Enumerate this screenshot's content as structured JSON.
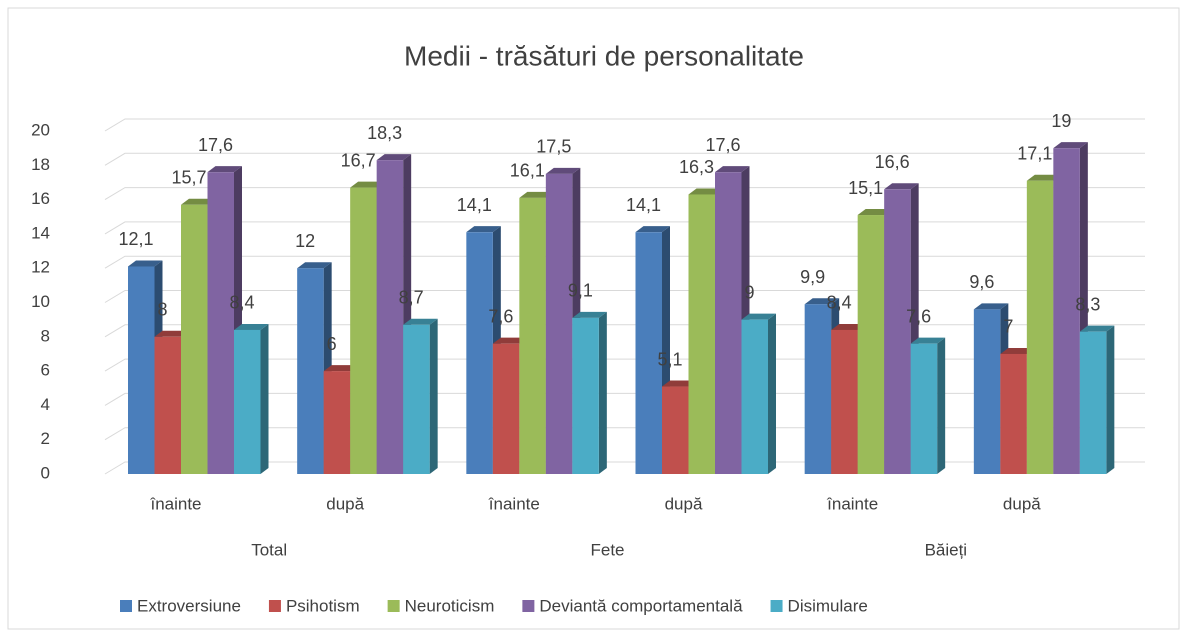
{
  "chart_data": {
    "type": "bar3d",
    "title": "Medii - trăsături  de personalitate",
    "categories": [
      "înainte",
      "după",
      "înainte",
      "după",
      "înainte",
      "după"
    ],
    "groups": [
      "Total",
      "Fete",
      "Băieți"
    ],
    "ylim": [
      0,
      20
    ],
    "yticks": [
      0,
      2,
      4,
      6,
      8,
      10,
      12,
      14,
      16,
      18,
      20
    ],
    "grid": true,
    "legend": "bottom",
    "series": [
      {
        "name": "Extroversiune",
        "color": "#4a7ebb",
        "values": [
          12.1,
          12,
          14.1,
          14.1,
          9.9,
          9.6
        ],
        "value_labels": [
          "12,1",
          "12",
          "14,1",
          "14,1",
          "9,9",
          "9,6"
        ]
      },
      {
        "name": "Psihotism",
        "color": "#c0504d",
        "values": [
          8,
          6,
          7.6,
          5.1,
          8.4,
          7
        ],
        "value_labels": [
          "8",
          "6",
          "7,6",
          "5,1",
          "8,4",
          "7"
        ]
      },
      {
        "name": "Neuroticism",
        "color": "#9bbb59",
        "values": [
          15.7,
          16.7,
          16.1,
          16.3,
          15.1,
          17.1
        ],
        "value_labels": [
          "15,7",
          "16,7",
          "16,1",
          "16,3",
          "15,1",
          "17,1"
        ]
      },
      {
        "name": "Deviantă comportamentală",
        "color": "#8064a2",
        "values": [
          17.6,
          18.3,
          17.5,
          17.6,
          16.6,
          19
        ],
        "value_labels": [
          "17,6",
          "18,3",
          "17,5",
          "17,6",
          "16,6",
          "19"
        ]
      },
      {
        "name": "Disimulare",
        "color": "#4bacc6",
        "values": [
          8.4,
          8.7,
          9.1,
          9,
          7.6,
          8.3
        ],
        "value_labels": [
          "8,4",
          "8,7",
          "9,1",
          "9",
          "7,6",
          "8,3"
        ]
      }
    ]
  }
}
